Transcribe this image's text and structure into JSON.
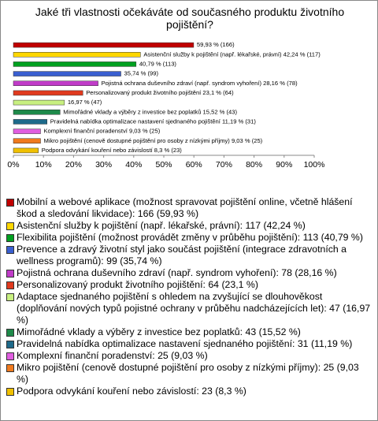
{
  "chart_data": {
    "type": "hbar",
    "title": "Jaké tři vlastnosti očekáváte od současného produktu životního pojištění?",
    "categories": [
      "Mobilní a webové aplikace (možnost spravovat pojištění online, včetně hlášení škod a sledování likvidace): 166 (59,93 %)",
      "Asistenční služby k pojištění (např. lékařské, právní): 117 (42,24 %)",
      "Flexibilita pojištění (možnost provádět změny v průběhu pojištění): 113 (40,79 %)",
      "Prevence a zdravý životní styl jako součást pojištění (integrace zdravotních a wellness programů): 99 (35,74 %)",
      "Pojistná ochrana duševního zdraví (např. syndrom vyhoření): 78 (28,16 %)",
      "Personalizovaný produkt životního pojištění: 64 (23,1 %)",
      "Adaptace sjednaného pojištění s ohledem na zvyšující se dlouhověkost (doplňování nových typů pojistné ochrany v průběhu nadcházejících let): 47 (16,97 %)",
      "Mimořádné vklady a výběry z investice bez poplatků: 43 (15,52 %)",
      "Pravidelná nabídka optimalizace nastavení sjednaného pojištění: 31 (11,19 %)",
      "Komplexní finanční poradenství: 25 (9,03 %)",
      "Mikro pojištění (cenově dostupné pojištění pro osoby z nízkými příjmy): 25 (9,03 %)",
      "Podpora odvykání kouření nebo závislostí: 23 (8,3 %)"
    ],
    "values": [
      59.93,
      42.24,
      40.79,
      35.74,
      28.16,
      23.1,
      16.97,
      15.52,
      11.19,
      9.03,
      9.03,
      8.3
    ],
    "value_labels": [
      "59,93 % (166)",
      "Asistenční služby k pojištění (např. lékařské, právní) 42,24 % (117)",
      "40,79 % (113)",
      "35,74 % (99)",
      "Pojistná ochrana duševního zdraví (např. syndrom vyhoření) 28,16 % (78)",
      "Personalizovaný produkt životního pojištění 23,1 % (64)",
      "16,97 % (47)",
      "Mimořádné vklady a výběry z investice bez poplatků 15,52 % (43)",
      "Pravidelná nabídka optimalizace nastavení sjednaného pojištění 11,19 % (31)",
      "Komplexní finanční poradenství 9,03 % (25)",
      "Mikro pojištění (cenově dostupné pojištění pro osoby z nízkými příjmy) 9,03 % (25)",
      "Podpora odvykání kouření nebo závislostí 8,3 % (23)"
    ],
    "colors": [
      "#c00000",
      "#ffd700",
      "#00a020",
      "#3a5fd0",
      "#c03cc8",
      "#e03a1e",
      "#c8f080",
      "#1e8a4a",
      "#1e6a8a",
      "#e05ee0",
      "#f07a1e",
      "#f0c000"
    ],
    "xlim": [
      0,
      100
    ],
    "xticks": [
      {
        "value": 0,
        "label": "0%"
      },
      {
        "value": 10,
        "label": "10%"
      },
      {
        "value": 20,
        "label": "20%"
      },
      {
        "value": 30,
        "label": "30%"
      },
      {
        "value": 40,
        "label": "40%"
      },
      {
        "value": 50,
        "label": "50%"
      },
      {
        "value": 60,
        "label": "60%"
      },
      {
        "value": 70,
        "label": "70%"
      },
      {
        "value": 80,
        "label": "80%"
      },
      {
        "value": 90,
        "label": "90%"
      },
      {
        "value": 100,
        "label": "100%"
      }
    ]
  }
}
